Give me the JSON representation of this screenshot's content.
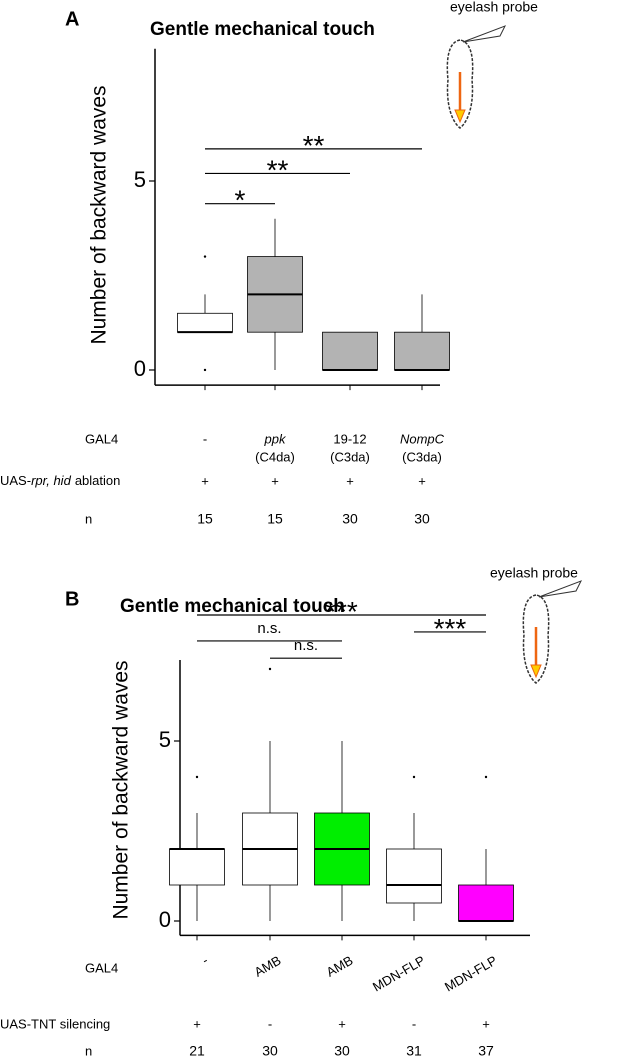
{
  "chart_data": [
    {
      "type": "box",
      "panel": "A",
      "title": "Gentle mechanical touch",
      "y_label": "Number of backward waves",
      "probe_label": "eyelash probe",
      "ylim": [
        -0.4,
        8.5
      ],
      "yticks": [
        0,
        5
      ],
      "category_label": "GAL4",
      "categories": [
        "-",
        "ppk",
        "19-12",
        "NompC"
      ],
      "category_notes": [
        null,
        "(C4da)",
        "(C3da)",
        "(C3da)"
      ],
      "italic_categories": [
        false,
        true,
        false,
        true
      ],
      "colors": [
        "#ffffff",
        "#b3b3b3",
        "#b3b3b3",
        "#b3b3b3"
      ],
      "boxes": [
        {
          "whisker_low": 1,
          "q1": 1,
          "median": 1,
          "q3": 1.5,
          "whisker_high": 2,
          "outliers": [
            3,
            0
          ]
        },
        {
          "whisker_low": 0,
          "q1": 1,
          "median": 2,
          "q3": 3,
          "whisker_high": 4,
          "outliers": []
        },
        {
          "whisker_low": 0,
          "q1": 0,
          "median": 0,
          "q3": 1,
          "whisker_high": 1,
          "outliers": []
        },
        {
          "whisker_low": 0,
          "q1": 0,
          "median": 0,
          "q3": 1,
          "whisker_high": 2,
          "outliers": []
        }
      ],
      "significance": [
        {
          "label": "*",
          "from": 0,
          "to": 1,
          "y": 4.4
        },
        {
          "label": "**",
          "from": 0,
          "to": 2,
          "y": 5.2
        },
        {
          "label": "**",
          "from": 0,
          "to": 3,
          "y": 5.85
        }
      ],
      "rows": [
        {
          "label": [
            {
              "text": "UAS-"
            },
            {
              "text": "rpr, hid",
              "italic": true
            },
            {
              "text": "ablation"
            }
          ],
          "cells": [
            "+",
            "+",
            "+",
            "+"
          ]
        },
        {
          "label": "n",
          "cells": [
            15,
            15,
            30,
            30
          ]
        }
      ]
    },
    {
      "type": "box",
      "panel": "B",
      "title": "Gentle mechanical touch",
      "y_label": "Number of backward waves",
      "probe_label": "eyelash probe",
      "ylim": [
        -0.4,
        7.25
      ],
      "yticks": [
        0,
        5
      ],
      "category_label": "GAL4",
      "categories": [
        "-",
        "AMB",
        "AMB",
        "MDN-FLP",
        "MDN-FLP"
      ],
      "colors": [
        "#ffffff",
        "#ffffff",
        "#00ee00",
        "#ffffff",
        "#ff00ff"
      ],
      "boxes": [
        {
          "whisker_low": 0,
          "q1": 1,
          "median": 2,
          "q3": 2,
          "whisker_high": 3,
          "outliers": [
            4
          ]
        },
        {
          "whisker_low": 0,
          "q1": 1,
          "median": 2,
          "q3": 3,
          "whisker_high": 5,
          "outliers": [
            7
          ]
        },
        {
          "whisker_low": 0,
          "q1": 1,
          "median": 2,
          "q3": 3,
          "whisker_high": 5,
          "outliers": []
        },
        {
          "whisker_low": 0,
          "q1": 0.5,
          "median": 1,
          "q3": 2,
          "whisker_high": 3,
          "outliers": [
            4
          ]
        },
        {
          "whisker_low": 0,
          "q1": 0,
          "median": 0,
          "q3": 1,
          "whisker_high": 2,
          "outliers": [
            4
          ]
        }
      ],
      "significance": [
        {
          "label": "***",
          "from": 0,
          "to": 4,
          "y": 8.5
        },
        {
          "label": "n.s.",
          "from": 0,
          "to": 2,
          "y": 7.78
        },
        {
          "label": "n.s.",
          "from": 1,
          "to": 2,
          "y": 7.3
        },
        {
          "label": "***",
          "from": 3,
          "to": 4,
          "y": 8.03
        }
      ],
      "rows": [
        {
          "label": "UAS-TNT silencing",
          "cells": [
            "+",
            "-",
            "+",
            "-",
            "+"
          ]
        },
        {
          "label": "n",
          "cells": [
            21,
            30,
            30,
            31,
            37
          ]
        }
      ]
    }
  ]
}
